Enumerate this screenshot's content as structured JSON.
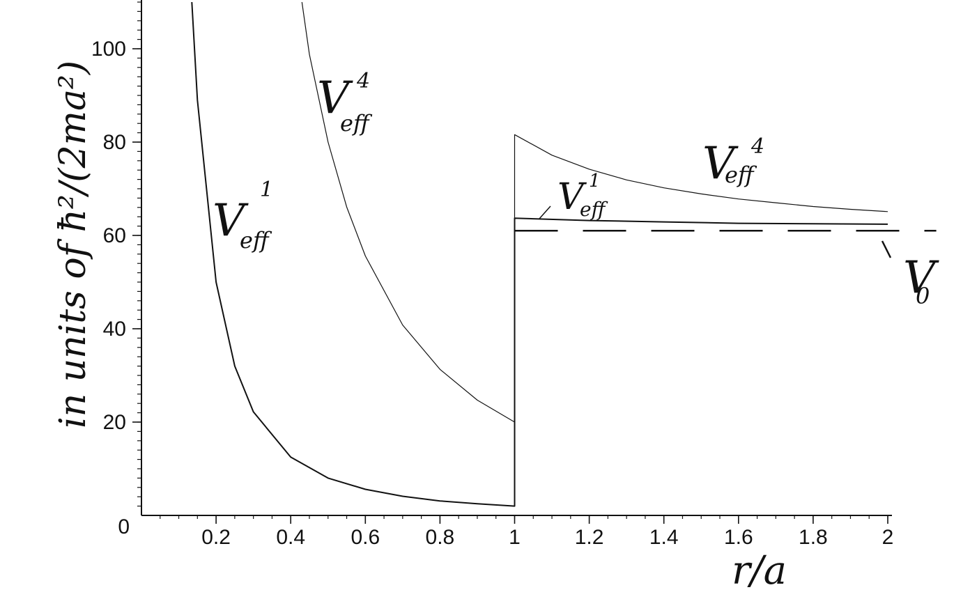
{
  "chart_data": {
    "type": "line",
    "xlabel": "r/a",
    "ylabel": "in units of ħ²/(2ma²)",
    "xlim": [
      0,
      2
    ],
    "ylim": [
      0,
      110
    ],
    "grid": false,
    "x_ticks": [
      "0.2",
      "0.4",
      "0.6",
      "0.8",
      "1",
      "1.2",
      "1.4",
      "1.6",
      "1.8",
      "2"
    ],
    "y_ticks": [
      "0",
      "20",
      "40",
      "60",
      "80",
      "100"
    ],
    "series": [
      {
        "name": "V_eff^1",
        "label_main": "V",
        "label_sup": "1",
        "label_sub": "eff",
        "x": [
          0.135,
          0.15,
          0.2,
          0.25,
          0.3,
          0.4,
          0.5,
          0.6,
          0.7,
          0.8,
          0.9,
          1.0,
          1.0,
          1.2,
          1.4,
          1.6,
          1.8,
          2.0
        ],
        "y": [
          110,
          89,
          50,
          32,
          22.2,
          12.5,
          8,
          5.6,
          4.1,
          3.1,
          2.5,
          2,
          63.7,
          63.2,
          62.9,
          62.6,
          62.5,
          62.4
        ]
      },
      {
        "name": "V_eff^4",
        "label_main": "V",
        "label_sup": "4",
        "label_sub": "eff",
        "x": [
          0.43,
          0.45,
          0.5,
          0.55,
          0.6,
          0.7,
          0.8,
          0.9,
          1.0,
          1.0,
          1.1,
          1.2,
          1.3,
          1.4,
          1.5,
          1.6,
          1.7,
          1.8,
          1.9,
          2.0
        ],
        "y": [
          110,
          98.8,
          80,
          66.1,
          55.6,
          40.8,
          31.3,
          24.7,
          20,
          81.6,
          77.2,
          74.2,
          71.9,
          70.2,
          68.9,
          67.8,
          67,
          66.2,
          65.6,
          65.1
        ]
      },
      {
        "name": "V_0",
        "label_main": "V",
        "label_sub": "0",
        "style": "dashed",
        "x": [
          1.0,
          2.13
        ],
        "y": [
          61,
          61
        ]
      }
    ]
  }
}
